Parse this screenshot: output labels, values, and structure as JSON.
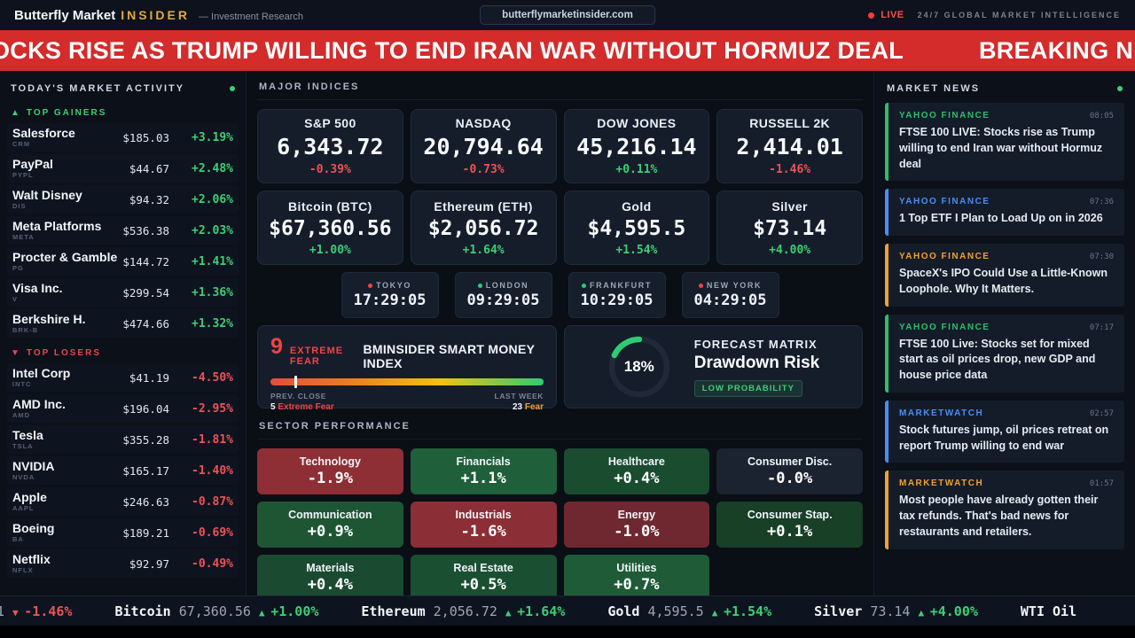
{
  "topbar": {
    "brand_primary": "Butterfly Market",
    "brand_accent": "INSIDER",
    "brand_sub": "— Investment Research",
    "url": "butterflymarketinsider.com",
    "live_label": "LIVE",
    "tagline": "24/7 GLOBAL MARKET INTELLIGENCE"
  },
  "banner": {
    "headline": "OCKS RISE AS TRUMP WILLING TO END IRAN WAR WITHOUT HORMUZ DEAL",
    "badge": "BREAKING N"
  },
  "icons": {
    "up_triangle": "▲",
    "down_triangle": "▼"
  },
  "sidebar": {
    "title": "TODAY'S MARKET ACTIVITY",
    "gainers_label": "TOP GAINERS",
    "losers_label": "TOP LOSERS",
    "gainers": [
      {
        "name": "Salesforce",
        "ticker": "CRM",
        "price": "$185.03",
        "change": "+3.19%",
        "dir": "up"
      },
      {
        "name": "PayPal",
        "ticker": "PYPL",
        "price": "$44.67",
        "change": "+2.48%",
        "dir": "up"
      },
      {
        "name": "Walt Disney",
        "ticker": "DIS",
        "price": "$94.32",
        "change": "+2.06%",
        "dir": "up"
      },
      {
        "name": "Meta Platforms",
        "ticker": "META",
        "price": "$536.38",
        "change": "+2.03%",
        "dir": "up"
      },
      {
        "name": "Procter & Gamble",
        "ticker": "PG",
        "price": "$144.72",
        "change": "+1.41%",
        "dir": "up"
      },
      {
        "name": "Visa Inc.",
        "ticker": "V",
        "price": "$299.54",
        "change": "+1.36%",
        "dir": "up"
      },
      {
        "name": "Berkshire H.",
        "ticker": "BRK-B",
        "price": "$474.66",
        "change": "+1.32%",
        "dir": "up"
      }
    ],
    "losers": [
      {
        "name": "Intel Corp",
        "ticker": "INTC",
        "price": "$41.19",
        "change": "-4.50%",
        "dir": "down"
      },
      {
        "name": "AMD Inc.",
        "ticker": "AMD",
        "price": "$196.04",
        "change": "-2.95%",
        "dir": "down"
      },
      {
        "name": "Tesla",
        "ticker": "TSLA",
        "price": "$355.28",
        "change": "-1.81%",
        "dir": "down"
      },
      {
        "name": "NVIDIA",
        "ticker": "NVDA",
        "price": "$165.17",
        "change": "-1.40%",
        "dir": "down"
      },
      {
        "name": "Apple",
        "ticker": "AAPL",
        "price": "$246.63",
        "change": "-0.87%",
        "dir": "down"
      },
      {
        "name": "Boeing",
        "ticker": "BA",
        "price": "$189.21",
        "change": "-0.69%",
        "dir": "down"
      },
      {
        "name": "Netflix",
        "ticker": "NFLX",
        "price": "$92.97",
        "change": "-0.49%",
        "dir": "down"
      }
    ]
  },
  "indices": {
    "section_label": "MAJOR INDICES",
    "cards": [
      {
        "name": "S&P 500",
        "value": "6,343.72",
        "change": "-0.39%",
        "dir": "down"
      },
      {
        "name": "NASDAQ",
        "value": "20,794.64",
        "change": "-0.73%",
        "dir": "down"
      },
      {
        "name": "DOW JONES",
        "value": "45,216.14",
        "change": "+0.11%",
        "dir": "up"
      },
      {
        "name": "RUSSELL 2K",
        "value": "2,414.01",
        "change": "-1.46%",
        "dir": "down"
      }
    ],
    "assets": [
      {
        "name": "Bitcoin (BTC)",
        "value": "$67,360.56",
        "change": "+1.00%",
        "dir": "up"
      },
      {
        "name": "Ethereum (ETH)",
        "value": "$2,056.72",
        "change": "+1.64%",
        "dir": "up"
      },
      {
        "name": "Gold",
        "value": "$4,595.5",
        "change": "+1.54%",
        "dir": "up"
      },
      {
        "name": "Silver",
        "value": "$73.14",
        "change": "+4.00%",
        "dir": "up"
      }
    ]
  },
  "clocks": {
    "items": [
      {
        "city": "TOKYO",
        "time": "17:29:05",
        "dot": "red"
      },
      {
        "city": "LONDON",
        "time": "09:29:05",
        "dot": "green"
      },
      {
        "city": "FRANKFURT",
        "time": "10:29:05",
        "dot": "green"
      },
      {
        "city": "NEW YORK",
        "time": "04:29:05",
        "dot": "red"
      }
    ]
  },
  "fear": {
    "value": "9",
    "label": "EXTREME FEAR",
    "title": "BMINSIDER SMART MONEY INDEX",
    "marker_pct": 9,
    "prev_close_label": "PREV. CLOSE",
    "prev_close_value": "5",
    "prev_close_text": "Extreme Fear",
    "last_week_label": "LAST WEEK",
    "last_week_value": "23",
    "last_week_text": "Fear"
  },
  "forecast": {
    "value": "18%",
    "pct": 18,
    "kicker": "FORECAST MATRIX",
    "title": "Drawdown Risk",
    "badge": "LOW PROBABILITY",
    "arc_color": "#2ecc71"
  },
  "sectors": {
    "section_label": "SECTOR PERFORMANCE",
    "tiles": [
      {
        "name": "Technology",
        "change": "-1.9%",
        "bg": "#8e2f36"
      },
      {
        "name": "Financials",
        "change": "+1.1%",
        "bg": "#1f5f3a"
      },
      {
        "name": "Healthcare",
        "change": "+0.4%",
        "bg": "#1a4c30"
      },
      {
        "name": "Consumer Disc.",
        "change": "-0.0%",
        "bg": "#1b2330"
      },
      {
        "name": "Communication",
        "change": "+0.9%",
        "bg": "#1e5634"
      },
      {
        "name": "Industrials",
        "change": "-1.6%",
        "bg": "#8c2e35"
      },
      {
        "name": "Energy",
        "change": "-1.0%",
        "bg": "#6f2830"
      },
      {
        "name": "Consumer Stap.",
        "change": "+0.1%",
        "bg": "#174027"
      },
      {
        "name": "Materials",
        "change": "+0.4%",
        "bg": "#1a4a2f"
      },
      {
        "name": "Real Estate",
        "change": "+0.5%",
        "bg": "#1b4f31"
      },
      {
        "name": "Utilities",
        "change": "+0.7%",
        "bg": "#1f5b37"
      }
    ]
  },
  "news": {
    "title": "MARKET NEWS",
    "items": [
      {
        "source": "YAHOO FINANCE",
        "time": "08:05",
        "color": "#2ebd6b",
        "headline": "FTSE 100 LIVE: Stocks rise as Trump willing to end Iran war without Hormuz deal"
      },
      {
        "source": "YAHOO FINANCE",
        "time": "07:36",
        "color": "#4a8df0",
        "headline": "1 Top ETF I Plan to Load Up on in 2026"
      },
      {
        "source": "YAHOO FINANCE",
        "time": "07:30",
        "color": "#f0a12f",
        "headline": "SpaceX's IPO Could Use a Little-Known Loophole. Why It Matters."
      },
      {
        "source": "YAHOO FINANCE",
        "time": "07:17",
        "color": "#2ebd6b",
        "headline": "FTSE 100 Live: Stocks set for mixed start as oil prices drop, new GDP and house price data"
      },
      {
        "source": "MARKETWATCH",
        "time": "02:57",
        "color": "#4a8df0",
        "headline": "Stock futures jump, oil prices retreat on report Trump willing to end war"
      },
      {
        "source": "MARKETWATCH",
        "time": "01:57",
        "color": "#f0a12f",
        "headline": "Most people have already gotten their tax refunds. That's bad news for restaurants and retailers."
      }
    ]
  },
  "ticker": {
    "items": [
      {
        "name": "",
        "value": "1",
        "dir": "down",
        "change": "-1.46%"
      },
      {
        "name": "Bitcoin",
        "value": "67,360.56",
        "dir": "up",
        "change": "+1.00%"
      },
      {
        "name": "Ethereum",
        "value": "2,056.72",
        "dir": "up",
        "change": "+1.64%"
      },
      {
        "name": "Gold",
        "value": "4,595.5",
        "dir": "up",
        "change": "+1.54%"
      },
      {
        "name": "Silver",
        "value": "73.14",
        "dir": "up",
        "change": "+4.00%"
      },
      {
        "name": "WTI Oil",
        "value": "",
        "dir": "",
        "change": ""
      }
    ]
  }
}
